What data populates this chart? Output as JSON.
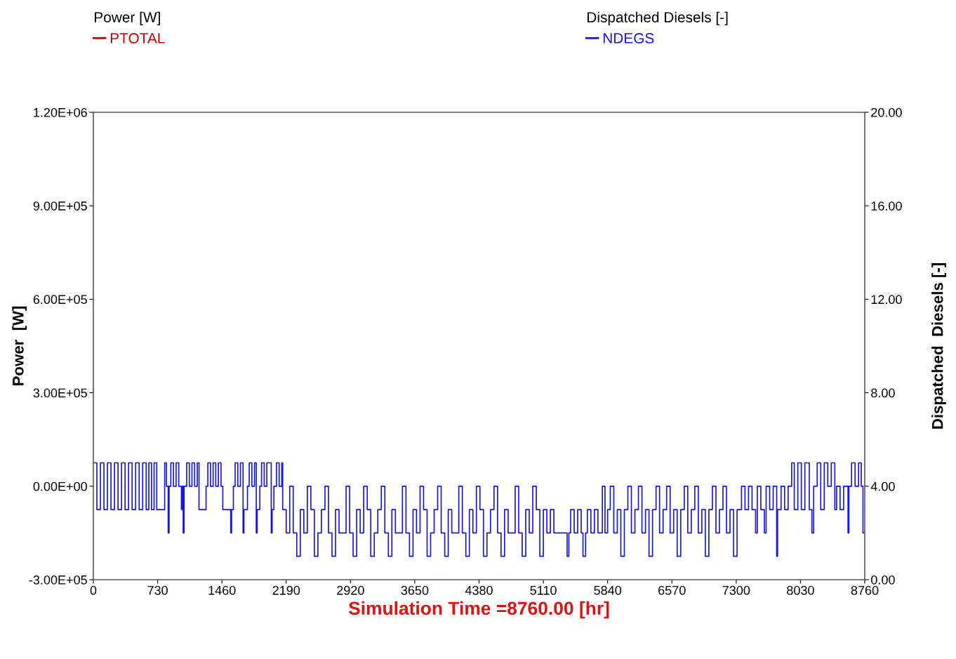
{
  "chart_data": {
    "type": "step",
    "xlabel": "Simulation Time =8760.00 [hr]",
    "ylabel": "Power  [W]",
    "y2label": "Dispatched  Diesels [-]",
    "annotations": [
      "Power [W]",
      "Dispatched Diesels [-]"
    ],
    "xlim": [
      0,
      8760
    ],
    "xticks": [
      0,
      730,
      1460,
      2190,
      2920,
      3650,
      4380,
      5110,
      5840,
      6570,
      7300,
      8030,
      8760
    ],
    "ylim": [
      -300000,
      1200000
    ],
    "yticks": [
      {
        "value": -300000,
        "label": "-3.00E+05"
      },
      {
        "value": 0,
        "label": "0.00E+00"
      },
      {
        "value": 300000,
        "label": "3.00E+05"
      },
      {
        "value": 600000,
        "label": "6.00E+05"
      },
      {
        "value": 900000,
        "label": "9.00E+05"
      },
      {
        "value": 1200000,
        "label": "1.20E+06"
      }
    ],
    "y2lim": [
      0,
      20
    ],
    "y2ticks": [
      {
        "value": 0,
        "label": "0.00"
      },
      {
        "value": 4,
        "label": "4.00"
      },
      {
        "value": 8,
        "label": "8.00"
      },
      {
        "value": 12,
        "label": "12.00"
      },
      {
        "value": 16,
        "label": "16.00"
      },
      {
        "value": 20,
        "label": "20.00"
      }
    ],
    "grid": false,
    "legend": "top",
    "line_style": "solid",
    "marker": "none",
    "series": [
      {
        "name": "PTOTAL",
        "color": "#c00000"
      },
      {
        "name": "NDEGS",
        "color": "#1414f0",
        "axis": "y2",
        "x": [
          0,
          40,
          80,
          120,
          160,
          200,
          240,
          280,
          320,
          360,
          400,
          440,
          480,
          520,
          560,
          600,
          630,
          660,
          690,
          720,
          810,
          830,
          850,
          860,
          880,
          910,
          940,
          970,
          1000,
          1010,
          1020,
          1030,
          1060,
          1090,
          1120,
          1150,
          1180,
          1200,
          1280,
          1300,
          1330,
          1360,
          1390,
          1420,
          1450,
          1470,
          1560,
          1570,
          1590,
          1610,
          1640,
          1670,
          1700,
          1710,
          1750,
          1770,
          1800,
          1830,
          1850,
          1860,
          1890,
          1910,
          1940,
          1970,
          2020,
          2030,
          2050,
          2080,
          2110,
          2140,
          2150,
          2190,
          2230,
          2270,
          2310,
          2350,
          2390,
          2430,
          2470,
          2510,
          2550,
          2590,
          2630,
          2670,
          2710,
          2750,
          2790,
          2830,
          2870,
          2910,
          2950,
          2990,
          3030,
          3070,
          3110,
          3150,
          3190,
          3230,
          3270,
          3310,
          3350,
          3390,
          3430,
          3470,
          3510,
          3550,
          3590,
          3630,
          3670,
          3710,
          3750,
          3790,
          3830,
          3870,
          3910,
          3950,
          3990,
          4030,
          4070,
          4110,
          4150,
          4190,
          4230,
          4270,
          4310,
          4350,
          4390,
          4430,
          4470,
          4510,
          4550,
          4590,
          4630,
          4670,
          4710,
          4750,
          4790,
          4830,
          4870,
          4910,
          4950,
          4990,
          5030,
          5070,
          5110,
          5150,
          5190,
          5230,
          5380,
          5400,
          5420,
          5460,
          5500,
          5540,
          5560,
          5590,
          5610,
          5650,
          5690,
          5730,
          5780,
          5810,
          5840,
          5870,
          5910,
          5950,
          5990,
          6030,
          6070,
          6110,
          6150,
          6190,
          6230,
          6270,
          6310,
          6350,
          6390,
          6430,
          6470,
          6510,
          6550,
          6590,
          6630,
          6670,
          6710,
          6750,
          6790,
          6830,
          6870,
          6910,
          6950,
          6990,
          7030,
          7070,
          7110,
          7150,
          7190,
          7230,
          7270,
          7310,
          7320,
          7360,
          7400,
          7440,
          7480,
          7520,
          7540,
          7580,
          7620,
          7640,
          7680,
          7720,
          7760,
          7770,
          7810,
          7850,
          7890,
          7930,
          7960,
          8000,
          8040,
          8080,
          8130,
          8160,
          8180,
          8220,
          8260,
          8300,
          8340,
          8380,
          8420,
          8440,
          8480,
          8520,
          8570,
          8580,
          8610,
          8650,
          8690,
          8720,
          8740,
          8760
        ],
        "values": [
          5,
          3,
          5,
          3,
          5,
          3,
          5,
          3,
          5,
          3,
          5,
          3,
          5,
          3,
          5,
          3,
          5,
          3,
          5,
          3,
          5,
          4,
          2,
          4,
          5,
          4,
          5,
          4,
          3,
          4,
          2,
          4,
          5,
          4,
          5,
          4,
          5,
          3,
          4,
          5,
          4,
          5,
          4,
          5,
          4,
          3,
          2,
          3,
          4,
          5,
          4,
          5,
          2,
          3,
          4,
          5,
          4,
          5,
          2,
          3,
          4,
          5,
          4,
          5,
          2,
          3,
          4,
          5,
          4,
          5,
          3,
          2,
          4,
          2,
          1,
          3,
          2,
          4,
          3,
          1,
          2,
          3,
          4,
          2,
          1,
          3,
          2,
          2,
          4,
          2,
          1,
          3,
          2,
          4,
          3,
          1,
          2,
          3,
          4,
          2,
          1,
          3,
          2,
          2,
          4,
          2,
          1,
          3,
          2,
          4,
          3,
          1,
          2,
          3,
          4,
          2,
          1,
          3,
          2,
          2,
          4,
          2,
          1,
          3,
          2,
          4,
          3,
          1,
          2,
          3,
          4,
          2,
          1,
          3,
          2,
          2,
          4,
          2,
          1,
          3,
          2,
          4,
          3,
          1,
          3,
          2,
          3,
          2,
          1,
          2,
          3,
          2,
          3,
          2,
          1,
          2,
          3,
          2,
          3,
          2,
          4,
          2,
          3,
          4,
          2,
          3,
          1,
          3,
          4,
          2,
          3,
          4,
          2,
          3,
          1,
          3,
          4,
          2,
          3,
          4,
          2,
          3,
          1,
          3,
          4,
          2,
          3,
          4,
          2,
          3,
          1,
          3,
          4,
          2,
          3,
          4,
          2,
          3,
          1,
          3,
          3,
          4,
          3,
          4,
          3,
          2,
          4,
          3,
          2,
          4,
          3,
          4,
          1,
          3,
          4,
          3,
          4,
          5,
          3,
          5,
          3,
          5,
          3,
          2,
          4,
          5,
          3,
          5,
          4,
          5,
          3,
          4,
          3,
          4,
          2,
          4,
          5,
          4,
          5,
          4,
          2,
          2
        ]
      }
    ]
  }
}
